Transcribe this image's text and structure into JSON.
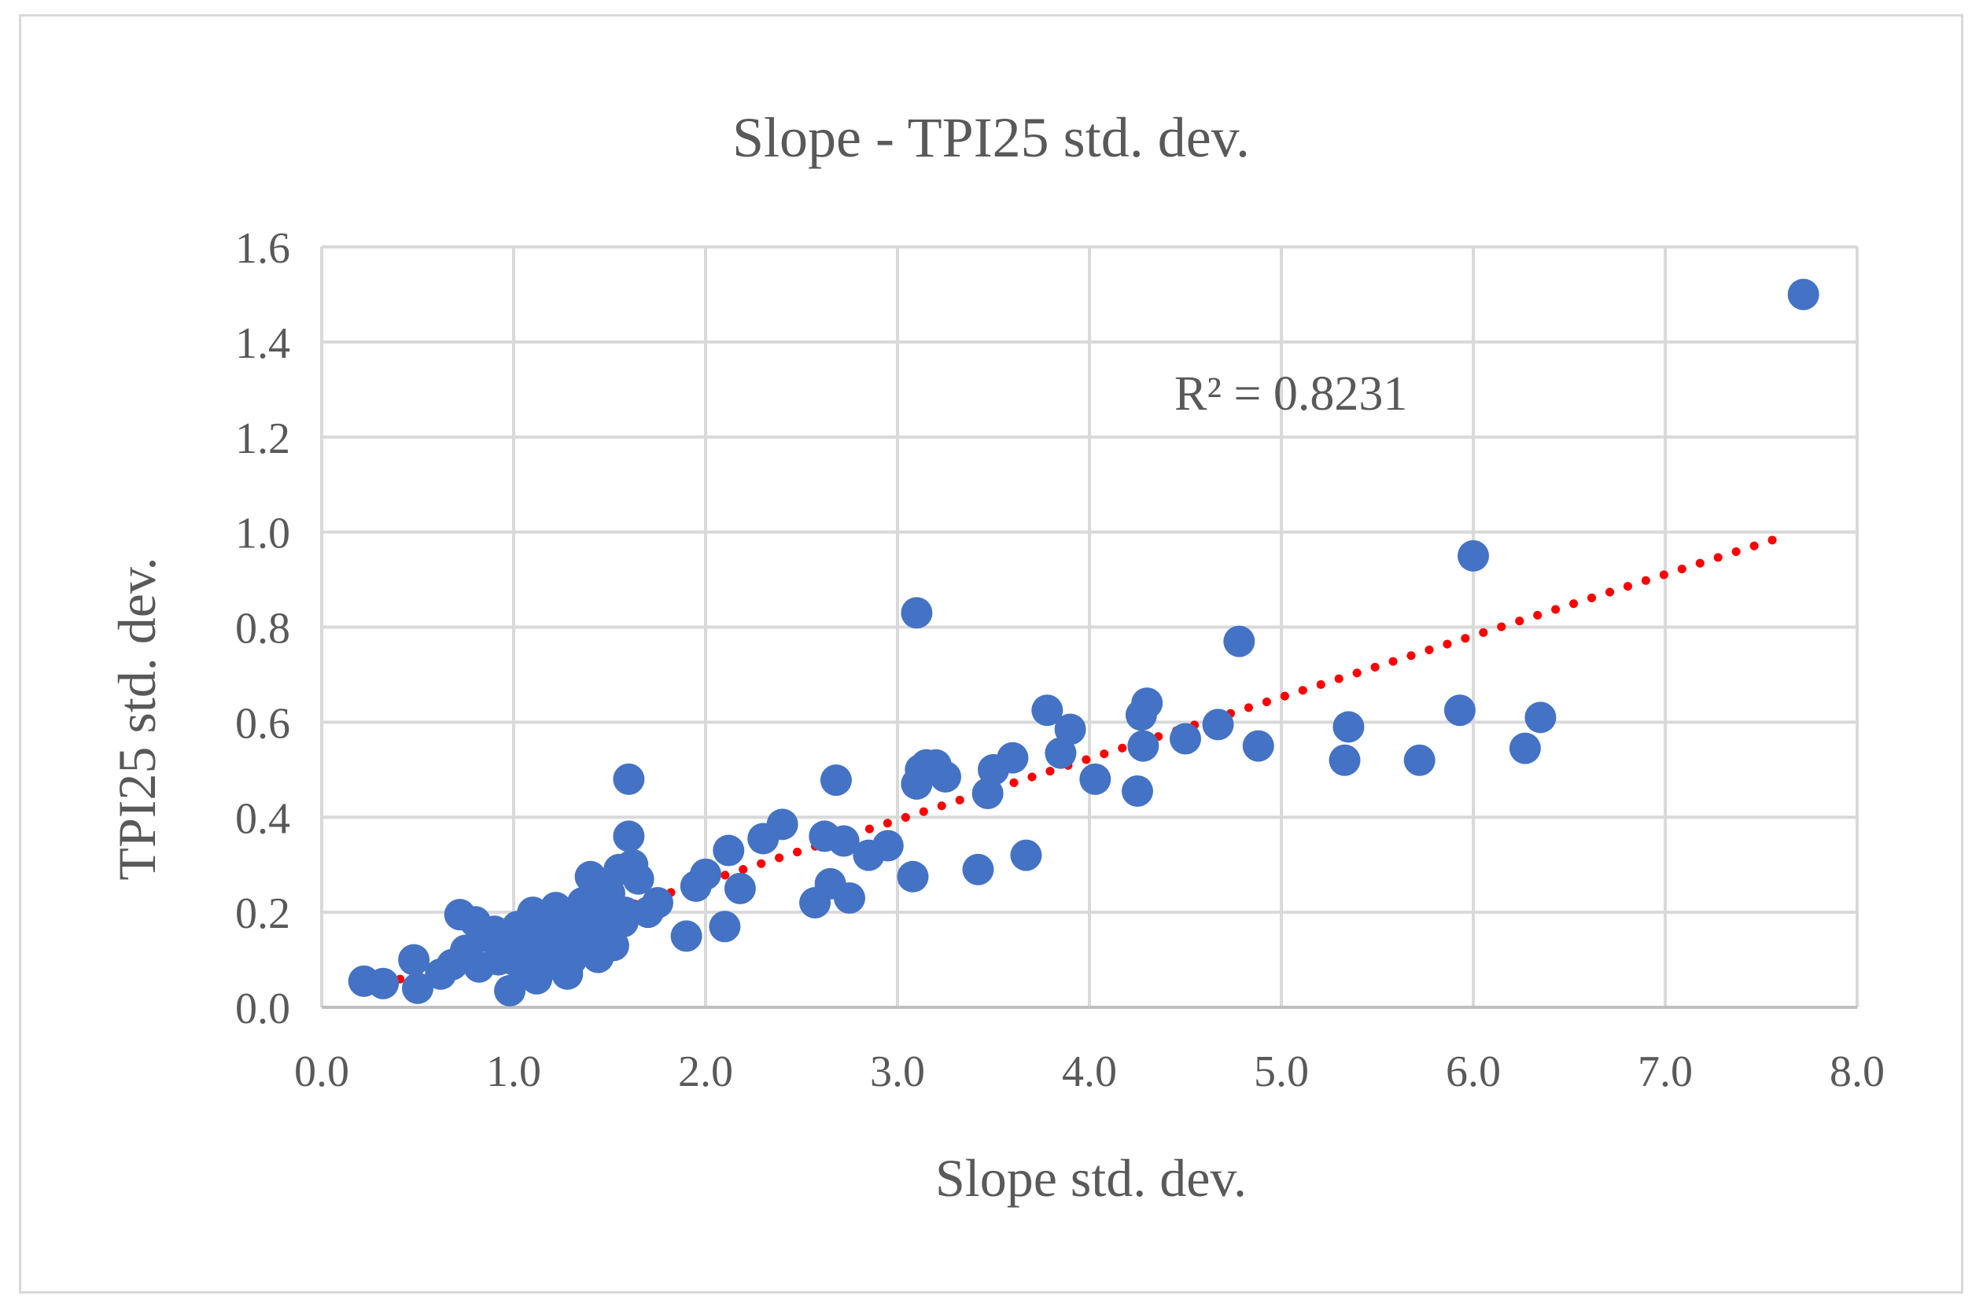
{
  "chart_data": {
    "type": "scatter",
    "title": "Slope - TPI25 std. dev.",
    "xlabel": "Slope std. dev.",
    "ylabel": "TPI25 std. dev.",
    "xlim": [
      0.0,
      8.0
    ],
    "ylim": [
      0.0,
      1.6
    ],
    "x_ticks": [
      "0.0",
      "1.0",
      "2.0",
      "3.0",
      "4.0",
      "5.0",
      "6.0",
      "7.0",
      "8.0"
    ],
    "y_ticks": [
      "0.0",
      "0.2",
      "0.4",
      "0.6",
      "0.8",
      "1.0",
      "1.2",
      "1.4",
      "1.6"
    ],
    "grid": true,
    "point_color": "#4472c4",
    "trendline": {
      "type": "linear",
      "style": "dotted",
      "color": "#ff0000",
      "x_start": 0.22,
      "x_end": 7.65,
      "y_start": 0.035,
      "y_end": 0.995
    },
    "annotation": "R² = 0.8231",
    "series": [
      {
        "name": "TPI25 std. dev.",
        "x": [
          0.22,
          0.32,
          0.48,
          0.5,
          0.62,
          0.68,
          0.72,
          0.75,
          0.8,
          0.82,
          0.85,
          0.9,
          0.92,
          0.95,
          0.97,
          0.98,
          1.0,
          1.02,
          1.04,
          1.05,
          1.08,
          1.1,
          1.12,
          1.14,
          1.15,
          1.18,
          1.2,
          1.22,
          1.25,
          1.27,
          1.28,
          1.3,
          1.32,
          1.35,
          1.36,
          1.38,
          1.4,
          1.42,
          1.44,
          1.45,
          1.47,
          1.5,
          1.52,
          1.55,
          1.57,
          1.58,
          1.6,
          1.6,
          1.62,
          1.65,
          1.7,
          1.75,
          1.9,
          1.95,
          2.0,
          2.1,
          2.12,
          2.18,
          2.3,
          2.4,
          2.57,
          2.62,
          2.65,
          2.68,
          2.72,
          2.75,
          2.85,
          2.95,
          3.08,
          3.1,
          3.1,
          3.12,
          3.15,
          3.2,
          3.25,
          3.42,
          3.47,
          3.5,
          3.6,
          3.67,
          3.78,
          3.85,
          3.9,
          4.03,
          4.25,
          4.27,
          4.28,
          4.3,
          4.5,
          4.67,
          4.78,
          4.88,
          5.33,
          5.35,
          5.72,
          5.93,
          6.0,
          6.27,
          6.35,
          7.72
        ],
        "y": [
          0.055,
          0.05,
          0.1,
          0.04,
          0.07,
          0.09,
          0.195,
          0.12,
          0.18,
          0.085,
          0.15,
          0.16,
          0.1,
          0.12,
          0.14,
          0.035,
          0.1,
          0.17,
          0.13,
          0.08,
          0.14,
          0.2,
          0.06,
          0.11,
          0.16,
          0.09,
          0.15,
          0.21,
          0.13,
          0.17,
          0.07,
          0.1,
          0.19,
          0.14,
          0.22,
          0.12,
          0.275,
          0.18,
          0.105,
          0.2,
          0.15,
          0.24,
          0.13,
          0.29,
          0.18,
          0.2,
          0.48,
          0.36,
          0.3,
          0.27,
          0.2,
          0.22,
          0.15,
          0.255,
          0.28,
          0.17,
          0.33,
          0.25,
          0.355,
          0.385,
          0.22,
          0.36,
          0.26,
          0.478,
          0.35,
          0.23,
          0.32,
          0.34,
          0.275,
          0.47,
          0.83,
          0.5,
          0.51,
          0.51,
          0.485,
          0.29,
          0.45,
          0.5,
          0.525,
          0.32,
          0.625,
          0.535,
          0.585,
          0.48,
          0.455,
          0.615,
          0.55,
          0.64,
          0.565,
          0.595,
          0.77,
          0.55,
          0.52,
          0.59,
          0.52,
          0.625,
          0.95,
          0.545,
          0.61,
          1.5
        ]
      }
    ]
  }
}
